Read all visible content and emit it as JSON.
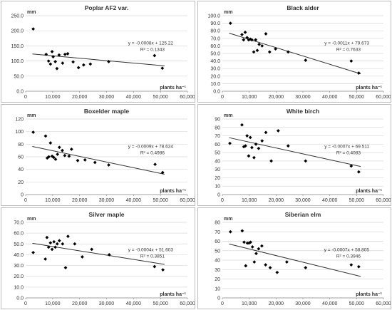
{
  "chart_data": [
    {
      "type": "scatter",
      "title": "Poplar AF2 var.",
      "ylabel": "mm",
      "xlabel": "plants ha⁻¹",
      "xlim": [
        0,
        60000
      ],
      "ylim": [
        0,
        250
      ],
      "x_ticks": [
        "0",
        "10,000",
        "20,000",
        "30,000",
        "40,000",
        "50,000",
        "60,000"
      ],
      "y_ticks": [
        "0.0",
        "50.0",
        "100.0",
        "150.0",
        "200.0",
        "250.0"
      ],
      "equation": "y = -0.0008x + 125.22",
      "r_squared": "R² = 0.1343",
      "trendline": {
        "slope": -0.0008,
        "intercept": 125.22
      },
      "points": [
        [
          2800,
          206
        ],
        [
          7600,
          122
        ],
        [
          8500,
          100
        ],
        [
          9200,
          90
        ],
        [
          9800,
          131
        ],
        [
          10200,
          114
        ],
        [
          11000,
          98
        ],
        [
          11600,
          75
        ],
        [
          12400,
          120
        ],
        [
          13700,
          93
        ],
        [
          14600,
          122
        ],
        [
          15600,
          124
        ],
        [
          17600,
          97
        ],
        [
          19600,
          78
        ],
        [
          21500,
          87
        ],
        [
          24000,
          90
        ],
        [
          30800,
          98
        ],
        [
          47800,
          118
        ],
        [
          50700,
          76
        ]
      ]
    },
    {
      "type": "scatter",
      "title": "Black alder",
      "ylabel": "mm",
      "xlabel": "plants ha⁻¹",
      "xlim": [
        0,
        60000
      ],
      "ylim": [
        0,
        100
      ],
      "x_ticks": [
        "0",
        "10,000",
        "20,000",
        "30,000",
        "40,000",
        "50,000",
        "60,000"
      ],
      "y_ticks": [
        "0.0",
        "10.0",
        "20.0",
        "30.0",
        "40.0",
        "50.0",
        "60.0",
        "70.0",
        "80.0",
        "90.0",
        "100.0"
      ],
      "equation": "y = -0.0011x + 79.673",
      "r_squared": "R² = 0.7633",
      "trendline": {
        "slope": -0.0011,
        "intercept": 79.673
      },
      "points": [
        [
          3000,
          90
        ],
        [
          7300,
          75
        ],
        [
          7900,
          68
        ],
        [
          8500,
          78
        ],
        [
          9200,
          71
        ],
        [
          9800,
          68
        ],
        [
          10400,
          69
        ],
        [
          11000,
          68
        ],
        [
          11700,
          52
        ],
        [
          12400,
          68
        ],
        [
          13000,
          54
        ],
        [
          13700,
          62
        ],
        [
          14800,
          60
        ],
        [
          16200,
          76
        ],
        [
          17600,
          52
        ],
        [
          19800,
          56
        ],
        [
          24500,
          52
        ],
        [
          31000,
          41
        ],
        [
          48000,
          40
        ],
        [
          50800,
          24
        ]
      ]
    },
    {
      "type": "scatter",
      "title": "Boxelder maple",
      "ylabel": "mm",
      "xlabel": "plants ha⁻¹",
      "xlim": [
        0,
        60000
      ],
      "ylim": [
        0,
        120
      ],
      "x_ticks": [
        "0",
        "10,000",
        "20,000",
        "30,000",
        "40,000",
        "50,000",
        "60,000"
      ],
      "y_ticks": [
        "0",
        "20",
        "40",
        "60",
        "80",
        "100",
        "120"
      ],
      "equation": "y = -0.0009x + 78.624",
      "r_squared": "R² = 0.4986",
      "trendline": {
        "slope": -0.0009,
        "intercept": 78.624
      },
      "points": [
        [
          2800,
          99
        ],
        [
          7400,
          93
        ],
        [
          8000,
          58
        ],
        [
          8600,
          60
        ],
        [
          9200,
          82
        ],
        [
          9800,
          61
        ],
        [
          10400,
          59
        ],
        [
          11100,
          56
        ],
        [
          11800,
          64
        ],
        [
          12500,
          75
        ],
        [
          13600,
          70
        ],
        [
          14500,
          62
        ],
        [
          16100,
          61
        ],
        [
          17000,
          72
        ],
        [
          19300,
          54
        ],
        [
          22000,
          55
        ],
        [
          25700,
          51
        ],
        [
          30800,
          47
        ],
        [
          48000,
          48
        ],
        [
          50800,
          35
        ]
      ]
    },
    {
      "type": "scatter",
      "title": "White birch",
      "ylabel": "mm",
      "xlabel": "plants ha⁻¹",
      "xlim": [
        0,
        60000
      ],
      "ylim": [
        0,
        90
      ],
      "x_ticks": [
        "0",
        "10,000",
        "20,000",
        "30,000",
        "40,000",
        "50,000",
        "60,000"
      ],
      "y_ticks": [
        "0",
        "10",
        "20",
        "30",
        "40",
        "50",
        "60",
        "70",
        "80",
        "90"
      ],
      "equation": "y = -0.0007x + 69.511",
      "r_squared": "R² = 0.4083",
      "trendline": {
        "slope": -0.0007,
        "intercept": 69.511
      },
      "points": [
        [
          2800,
          61
        ],
        [
          7300,
          83
        ],
        [
          8000,
          57
        ],
        [
          8600,
          58
        ],
        [
          9200,
          70
        ],
        [
          9800,
          46
        ],
        [
          10400,
          68
        ],
        [
          11000,
          56
        ],
        [
          11800,
          44
        ],
        [
          12500,
          60
        ],
        [
          13500,
          55
        ],
        [
          14800,
          64
        ],
        [
          16200,
          74
        ],
        [
          18200,
          40
        ],
        [
          20800,
          76
        ],
        [
          24500,
          58
        ],
        [
          31000,
          40
        ],
        [
          48000,
          34
        ],
        [
          50800,
          27
        ]
      ]
    },
    {
      "type": "scatter",
      "title": "Silver maple",
      "ylabel": "mm",
      "xlabel": "plants ha⁻¹",
      "xlim": [
        0,
        60000
      ],
      "ylim": [
        0,
        70
      ],
      "x_ticks": [
        "0",
        "10,000",
        "20,000",
        "30,000",
        "40,000",
        "50,000",
        "60,000"
      ],
      "y_ticks": [
        "0.0",
        "10.0",
        "20.0",
        "30.0",
        "40.0",
        "50.0",
        "60.0",
        "70.0"
      ],
      "equation": "y = -0.0004x + 51.603",
      "r_squared": "R² = 0.3851",
      "trendline": {
        "slope": -0.0004,
        "intercept": 51.603
      },
      "points": [
        [
          2800,
          42
        ],
        [
          7300,
          36
        ],
        [
          7900,
          56
        ],
        [
          8500,
          47
        ],
        [
          9200,
          51
        ],
        [
          9800,
          45
        ],
        [
          10500,
          52
        ],
        [
          11000,
          47
        ],
        [
          11700,
          50
        ],
        [
          12500,
          53
        ],
        [
          13700,
          50
        ],
        [
          14800,
          28
        ],
        [
          15700,
          57
        ],
        [
          18200,
          50
        ],
        [
          21000,
          38
        ],
        [
          24500,
          45
        ],
        [
          31000,
          40
        ],
        [
          47800,
          29
        ],
        [
          50900,
          26
        ]
      ]
    },
    {
      "type": "scatter",
      "title": "Siberian elm",
      "ylabel": "mm",
      "xlabel": "plants ha⁻¹",
      "xlim": [
        0,
        60000
      ],
      "ylim": [
        0,
        80
      ],
      "x_ticks": [
        "0",
        "10,000",
        "20,000",
        "30,000",
        "40,000",
        "50,000",
        "60,000"
      ],
      "y_ticks": [
        "0",
        "10",
        "20",
        "30",
        "40",
        "50",
        "60",
        "70",
        "80"
      ],
      "equation": "y = -0.0007x + 58.805",
      "r_squared": "R² = 0.3946",
      "trendline": {
        "slope": -0.0007,
        "intercept": 58.805
      },
      "points": [
        [
          3000,
          70
        ],
        [
          7400,
          71
        ],
        [
          8100,
          59
        ],
        [
          8700,
          34
        ],
        [
          9300,
          58
        ],
        [
          9900,
          58
        ],
        [
          10500,
          59
        ],
        [
          11200,
          54
        ],
        [
          11900,
          38
        ],
        [
          12600,
          47
        ],
        [
          13500,
          52
        ],
        [
          14700,
          55
        ],
        [
          16100,
          35
        ],
        [
          17800,
          32
        ],
        [
          20400,
          27
        ],
        [
          24000,
          38
        ],
        [
          31000,
          32
        ],
        [
          48000,
          35
        ],
        [
          50800,
          33
        ]
      ]
    }
  ]
}
